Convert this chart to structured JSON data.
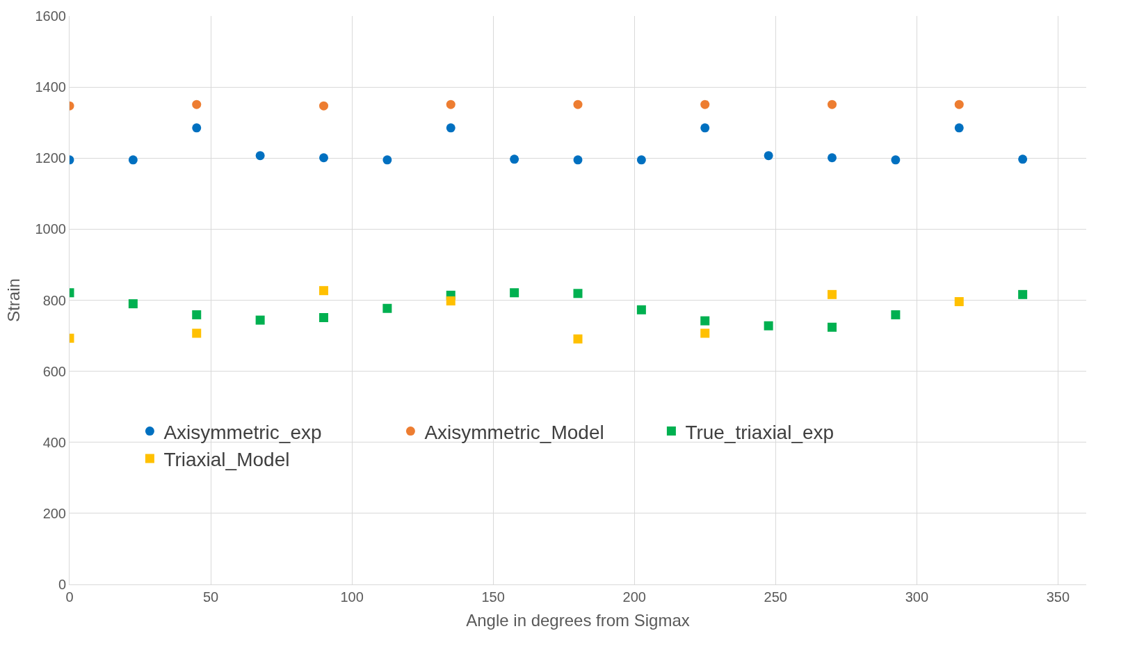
{
  "chart_data": {
    "type": "scatter",
    "xlabel": "Angle in degrees from Sigmax",
    "ylabel": "Strain",
    "xlim": [
      0,
      360
    ],
    "xticks": [
      0,
      50,
      100,
      150,
      200,
      250,
      300,
      350
    ],
    "ylim": [
      0,
      1600
    ],
    "yticks": [
      0,
      200,
      400,
      600,
      800,
      1000,
      1200,
      1400,
      1600
    ],
    "grid": true,
    "legend": "bottom",
    "series": [
      {
        "name": "Axisymmetric_exp",
        "color": "#0070c0",
        "marker": "circle",
        "x": [
          0,
          22.5,
          45,
          67.5,
          90,
          112.5,
          135,
          157.5,
          180,
          202.5,
          225,
          247.5,
          270,
          292.5,
          315,
          337.5
        ],
        "values": [
          1195,
          1195,
          1285,
          1207,
          1201,
          1195,
          1285,
          1197,
          1195,
          1195,
          1285,
          1207,
          1201,
          1195,
          1285,
          1197
        ]
      },
      {
        "name": "True_triaxial_exp",
        "color": "#00b050",
        "marker": "square",
        "x": [
          0,
          22.5,
          45,
          67.5,
          90,
          112.5,
          135,
          157.5,
          180,
          202.5,
          225,
          247.5,
          270,
          292.5,
          315,
          337.5
        ],
        "values": [
          821,
          790,
          759,
          744,
          751,
          777,
          814,
          821,
          819,
          773,
          742,
          728,
          724,
          759,
          null,
          816
        ]
      },
      {
        "name": "Axisymmetric_Model",
        "color": "#ed7d31",
        "marker": "circle",
        "x": [
          0,
          45,
          90,
          135,
          180,
          225,
          270,
          315
        ],
        "values": [
          1347,
          1351,
          1347,
          1351,
          1351,
          1351,
          1351,
          1351
        ]
      },
      {
        "name": "Triaxial_Model",
        "color": "#ffc000",
        "marker": "square",
        "x": [
          0,
          45,
          90,
          135,
          180,
          225,
          270,
          315
        ],
        "values": [
          693,
          707,
          827,
          798,
          691,
          707,
          816,
          796
        ]
      }
    ]
  }
}
